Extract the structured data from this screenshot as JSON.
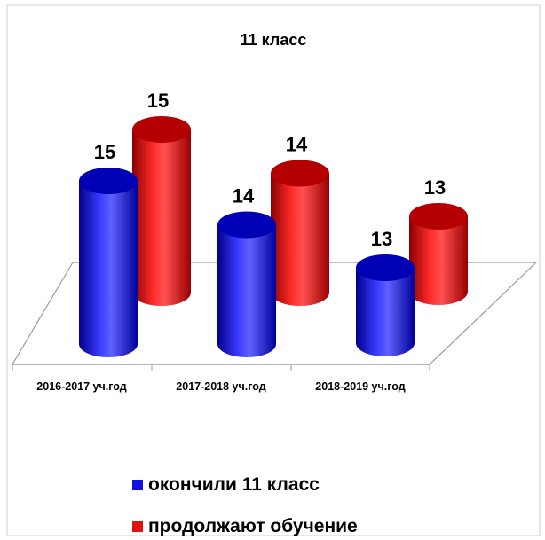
{
  "chart_data": {
    "type": "bar",
    "title": "11 класс",
    "categories": [
      "2016-2017 уч.год",
      "2017-2018 уч.год",
      "2018-2019 уч.год"
    ],
    "series": [
      {
        "name": "окончили 11 класс",
        "values": [
          15,
          14,
          13
        ],
        "color": "#1010e0"
      },
      {
        "name": "продолжают обучение",
        "values": [
          15,
          14,
          13
        ],
        "color": "#e01010"
      }
    ],
    "grid": false,
    "legend": "bottom-left"
  }
}
